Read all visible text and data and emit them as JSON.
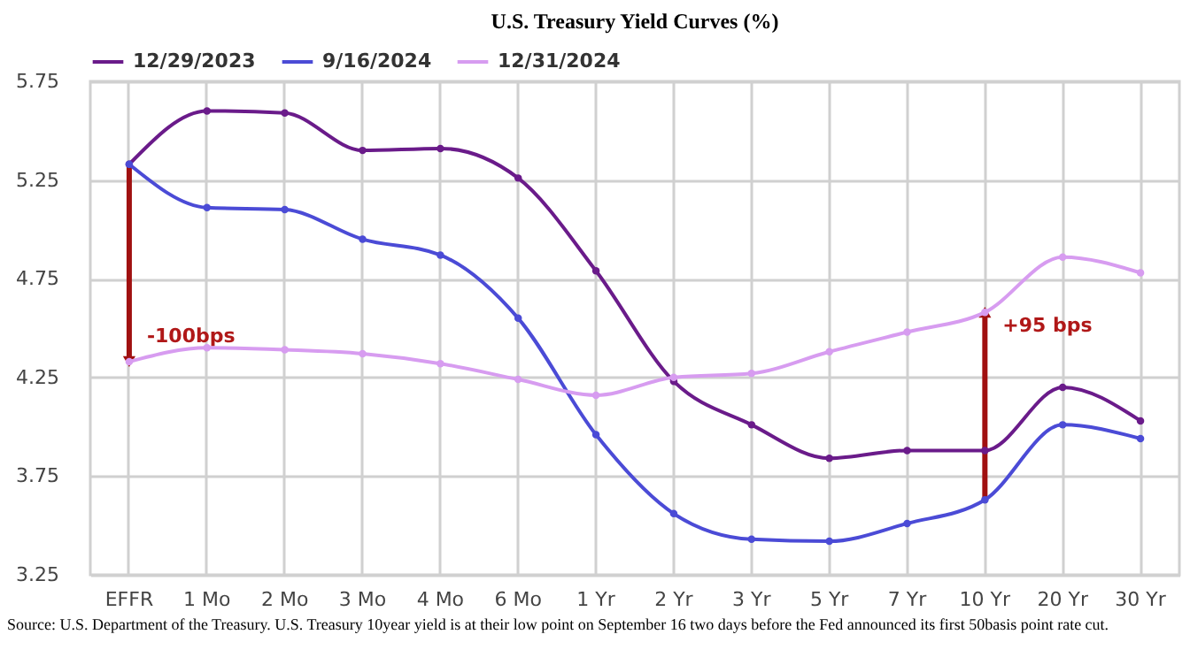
{
  "chart_data": {
    "type": "line",
    "title": "U.S. Treasury Yield Curves (%)",
    "categories": [
      "EFFR",
      "1 Mo",
      "2 Mo",
      "3 Mo",
      "4 Mo",
      "6 Mo",
      "1 Yr",
      "2 Yr",
      "3 Yr",
      "5 Yr",
      "7 Yr",
      "10 Yr",
      "20 Yr",
      "30 Yr"
    ],
    "series": [
      {
        "name": "12/29/2023",
        "color": "#6a1b8a",
        "values": [
          5.33,
          5.6,
          5.59,
          5.4,
          5.41,
          5.26,
          4.79,
          4.23,
          4.01,
          3.84,
          3.88,
          3.88,
          4.2,
          4.03
        ]
      },
      {
        "name": "9/16/2024",
        "color": "#4b4bd6",
        "values": [
          5.33,
          5.11,
          5.1,
          4.95,
          4.87,
          4.55,
          3.96,
          3.56,
          3.43,
          3.42,
          3.51,
          3.63,
          4.01,
          3.94
        ]
      },
      {
        "name": "12/31/2024",
        "color": "#d79cf0",
        "values": [
          4.33,
          4.4,
          4.39,
          4.37,
          4.32,
          4.24,
          4.16,
          4.25,
          4.27,
          4.38,
          4.48,
          4.58,
          4.86,
          4.78
        ]
      }
    ],
    "ylim": [
      3.25,
      5.75
    ],
    "yticks": [
      3.25,
      3.75,
      4.25,
      4.75,
      5.25,
      5.75
    ],
    "grid": true,
    "legend": "top",
    "marker": "circle",
    "line_style": "solid",
    "annotations": [
      {
        "text": "-100bps",
        "x": "EFFR",
        "y": 4.33
      },
      {
        "text": "+95 bps",
        "x": "10 Yr",
        "y": 4.58
      },
      "Source: U.S. Department of the Treasury. U.S. Treasury 10year yield is at their low point on September 16  two days before the Fed announced its first 50basis point rate cut."
    ]
  }
}
